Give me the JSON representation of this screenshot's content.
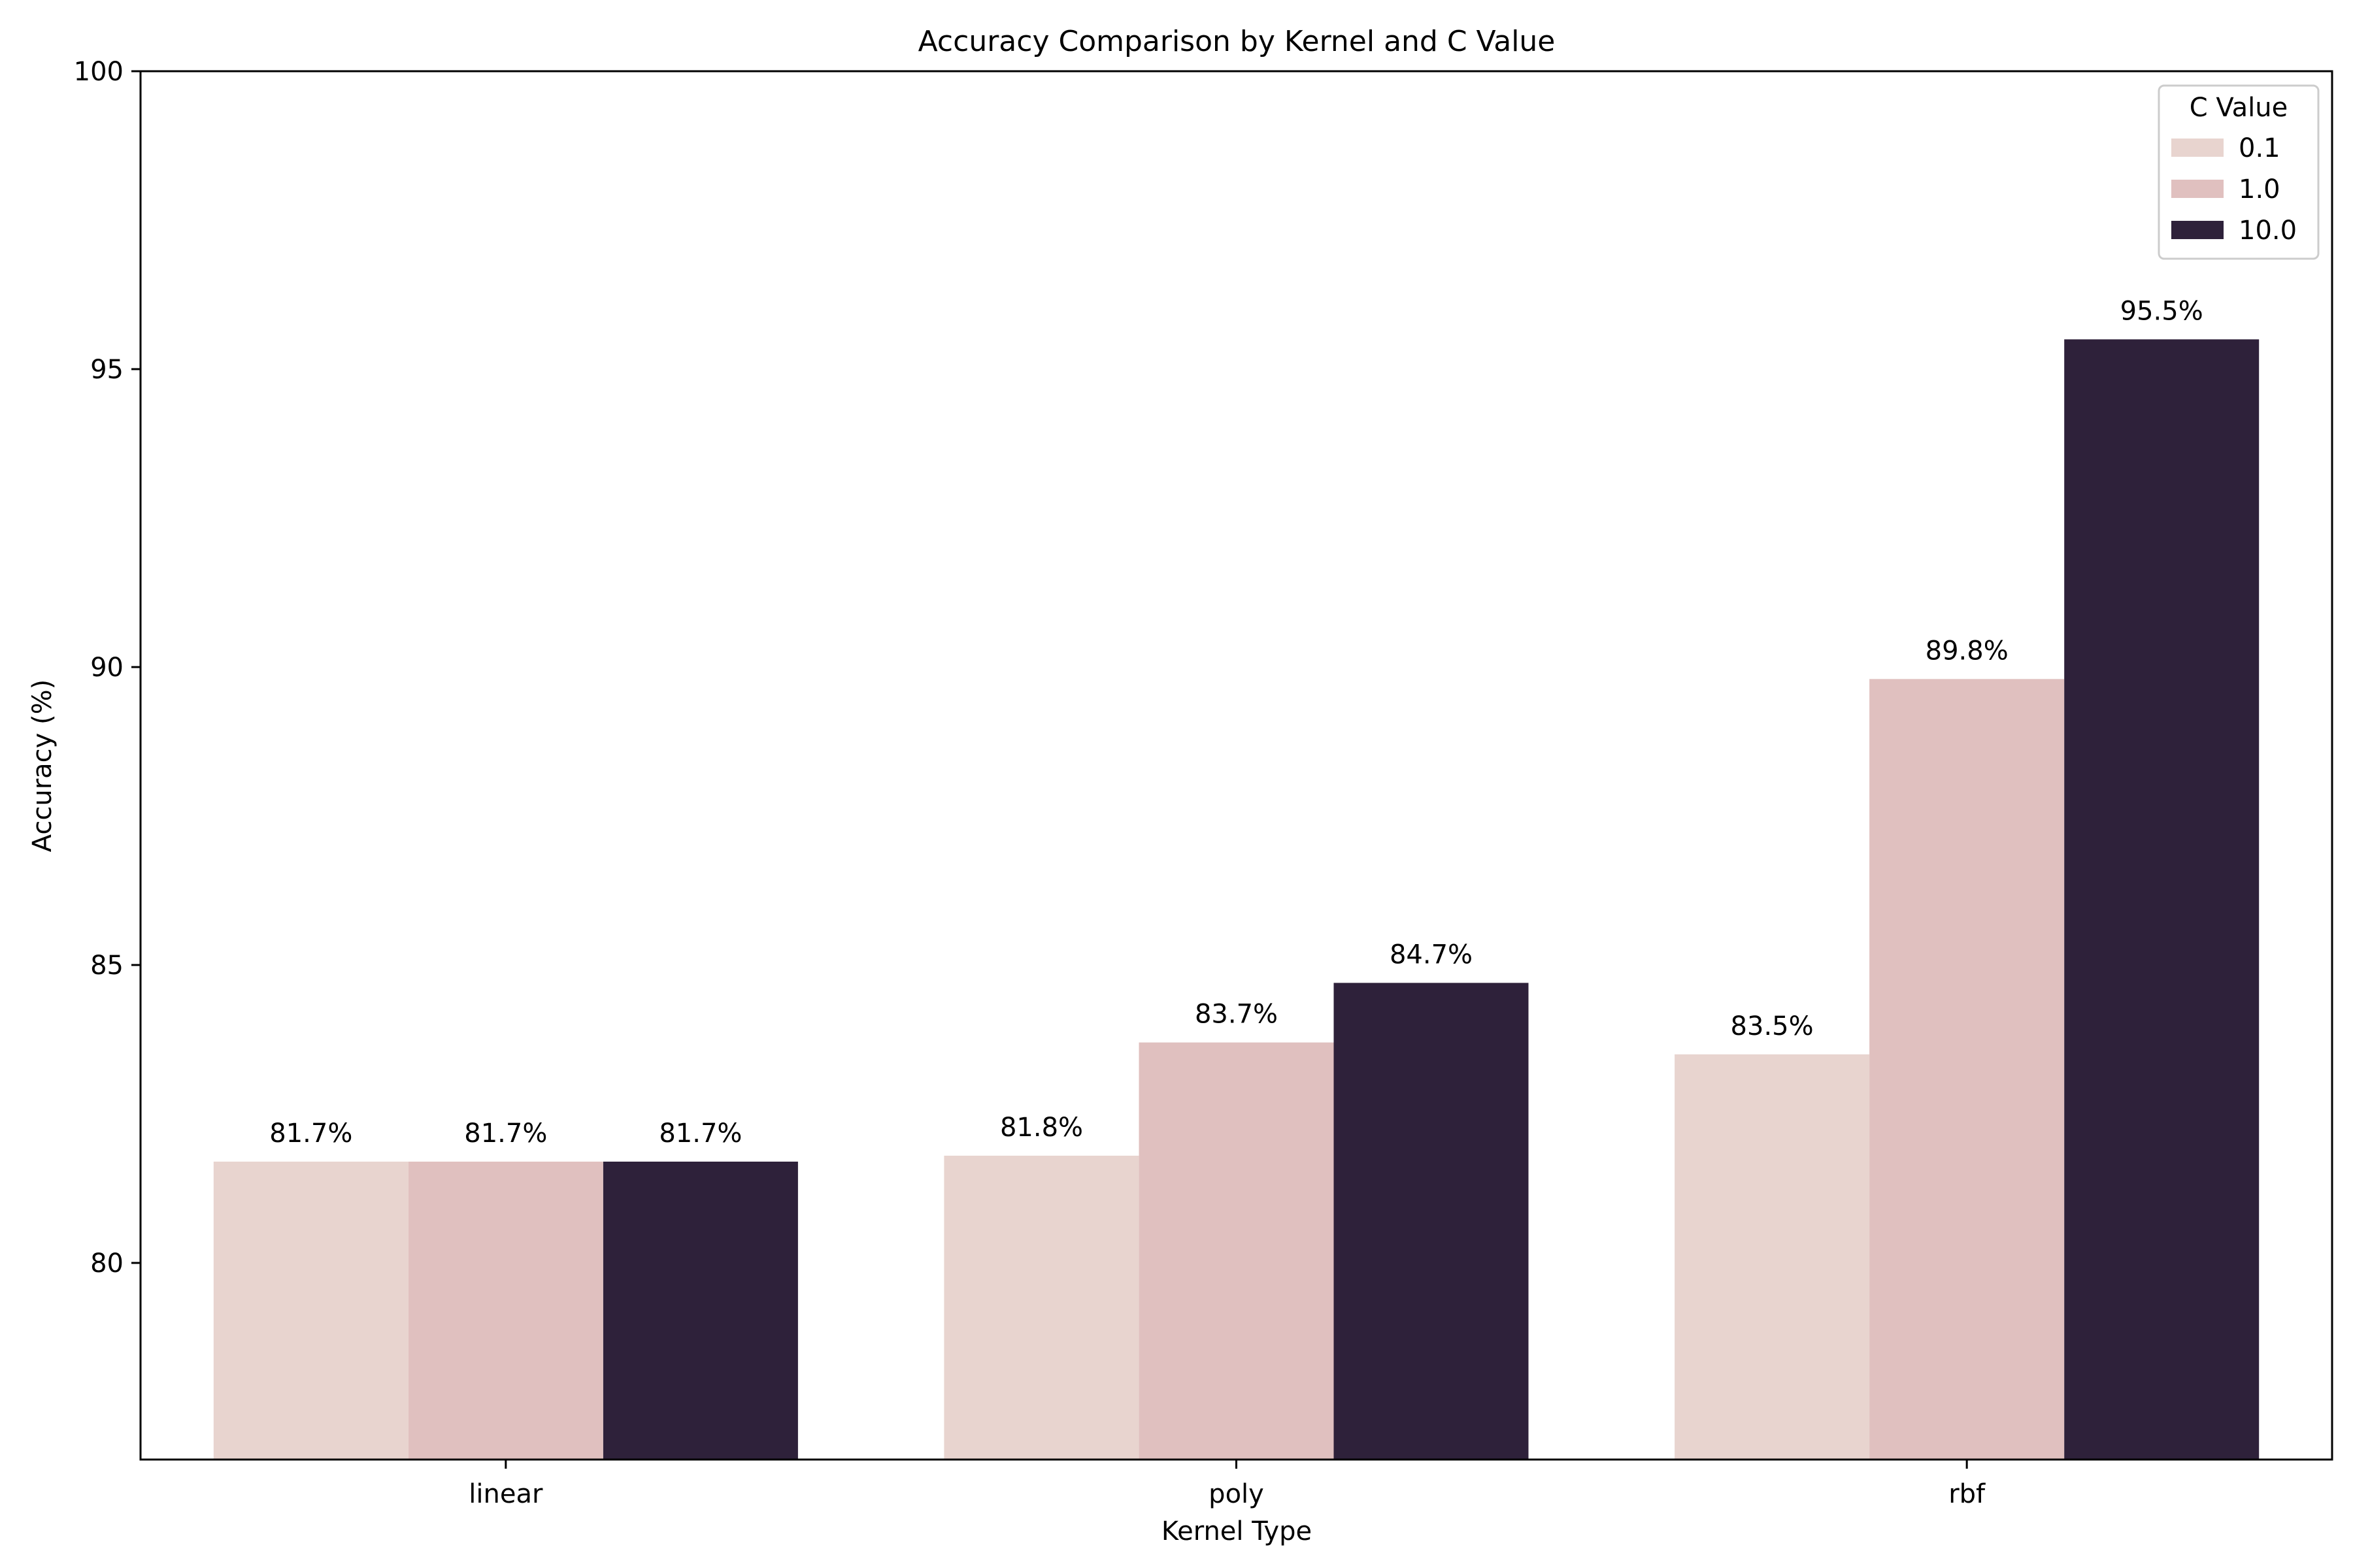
{
  "chart_data": {
    "type": "bar",
    "title": "Accuracy Comparison by Kernel and C Value",
    "xlabel": "Kernel Type",
    "ylabel": "Accuracy (%)",
    "categories": [
      "linear",
      "poly",
      "rbf"
    ],
    "series": [
      {
        "name": "0.1",
        "color": "#e8d4cf",
        "values": [
          81.7,
          81.8,
          83.5
        ]
      },
      {
        "name": "1.0",
        "color": "#e0c0bf",
        "values": [
          81.7,
          83.7,
          89.8
        ]
      },
      {
        "name": "10.0",
        "color": "#2e213a",
        "values": [
          81.7,
          84.7,
          95.5
        ]
      }
    ],
    "ylim": [
      76.7,
      100
    ],
    "yticks": [
      "80",
      "85",
      "90",
      "95",
      "100"
    ],
    "legend": {
      "title": "C Value",
      "placement": "top-right"
    },
    "grid": false
  }
}
